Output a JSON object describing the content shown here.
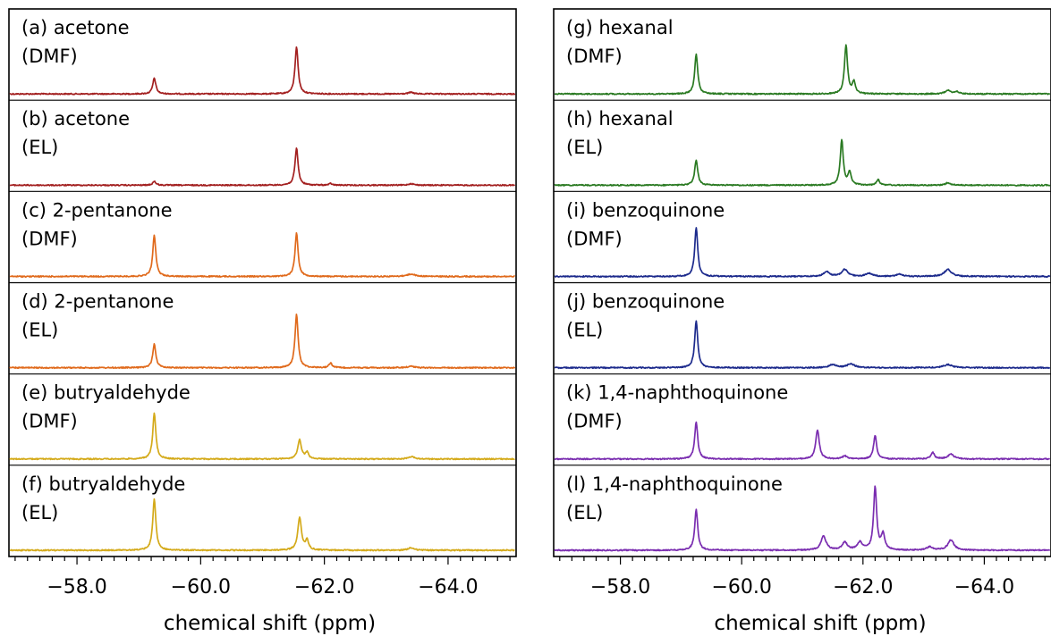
{
  "chart_data": [
    {
      "type": "line",
      "title": "",
      "xlabel": "chemical shift (ppm)",
      "ylabel": "",
      "xlim": [
        -56.9,
        -65.1
      ],
      "x_reversed": true,
      "xticks": [
        -58.0,
        -60.0,
        -62.0,
        -64.0
      ],
      "xtick_labels": [
        "−58.0",
        "−60.0",
        "−62.0",
        "−64.0"
      ],
      "grid": false,
      "series": [
        {
          "label_line1": "(a) acetone",
          "label_line2": "(DMF)",
          "color": "#a32020",
          "peaks": [
            {
              "x": -59.25,
              "height": 0.2,
              "width": 0.03
            },
            {
              "x": -61.55,
              "height": 0.6,
              "width": 0.03
            },
            {
              "x": -63.4,
              "height": 0.02,
              "width": 0.05
            }
          ]
        },
        {
          "label_line1": "(b) acetone",
          "label_line2": "(EL)",
          "color": "#a32020",
          "peaks": [
            {
              "x": -59.25,
              "height": 0.05,
              "width": 0.03
            },
            {
              "x": -61.55,
              "height": 0.47,
              "width": 0.03
            },
            {
              "x": -62.1,
              "height": 0.02,
              "width": 0.03
            },
            {
              "x": -63.4,
              "height": 0.02,
              "width": 0.05
            }
          ]
        },
        {
          "label_line1": "(c) 2-pentanone",
          "label_line2": "(DMF)",
          "color": "#e06a1c",
          "peaks": [
            {
              "x": -59.25,
              "height": 0.52,
              "width": 0.03
            },
            {
              "x": -61.55,
              "height": 0.55,
              "width": 0.03
            },
            {
              "x": -63.4,
              "height": 0.03,
              "width": 0.08
            }
          ]
        },
        {
          "label_line1": "(d) 2-pentanone",
          "label_line2": "(EL)",
          "color": "#e06a1c",
          "peaks": [
            {
              "x": -59.25,
              "height": 0.3,
              "width": 0.03
            },
            {
              "x": -61.55,
              "height": 0.68,
              "width": 0.03
            },
            {
              "x": -62.1,
              "height": 0.06,
              "width": 0.03
            },
            {
              "x": -63.4,
              "height": 0.02,
              "width": 0.06
            }
          ]
        },
        {
          "label_line1": "(e) butryaldehyde",
          "label_line2": "(DMF)",
          "color": "#d4aa1a",
          "peaks": [
            {
              "x": -59.25,
              "height": 0.58,
              "width": 0.03
            },
            {
              "x": -61.6,
              "height": 0.24,
              "width": 0.035
            },
            {
              "x": -61.72,
              "height": 0.08,
              "width": 0.03
            },
            {
              "x": -63.4,
              "height": 0.03,
              "width": 0.06
            }
          ]
        },
        {
          "label_line1": "(f) butryaldehyde",
          "label_line2": "(EL)",
          "color": "#d4aa1a",
          "peaks": [
            {
              "x": -59.25,
              "height": 0.65,
              "width": 0.03
            },
            {
              "x": -61.6,
              "height": 0.42,
              "width": 0.035
            },
            {
              "x": -61.72,
              "height": 0.12,
              "width": 0.03
            },
            {
              "x": -63.4,
              "height": 0.03,
              "width": 0.06
            }
          ]
        },
        {
          "label_line1": "(g) hexanal",
          "label_line2": "(DMF)",
          "color": "#2a7a22",
          "peaks": [
            {
              "x": -59.25,
              "height": 0.5,
              "width": 0.03
            },
            {
              "x": -61.72,
              "height": 0.62,
              "width": 0.03
            },
            {
              "x": -61.85,
              "height": 0.15,
              "width": 0.03
            },
            {
              "x": -63.4,
              "height": 0.05,
              "width": 0.05
            },
            {
              "x": -63.55,
              "height": 0.03,
              "width": 0.04
            }
          ]
        },
        {
          "label_line1": "(h) hexanal",
          "label_line2": "(EL)",
          "color": "#2a7a22",
          "peaks": [
            {
              "x": -59.25,
              "height": 0.32,
              "width": 0.03
            },
            {
              "x": -61.65,
              "height": 0.57,
              "width": 0.03
            },
            {
              "x": -61.78,
              "height": 0.16,
              "width": 0.03
            },
            {
              "x": -62.25,
              "height": 0.07,
              "width": 0.03
            },
            {
              "x": -63.4,
              "height": 0.03,
              "width": 0.05
            }
          ]
        },
        {
          "label_line1": "(i) benzoquinone",
          "label_line2": "(DMF)",
          "color": "#1c2a8c",
          "peaks": [
            {
              "x": -59.25,
              "height": 0.62,
              "width": 0.03
            },
            {
              "x": -61.4,
              "height": 0.06,
              "width": 0.06
            },
            {
              "x": -61.7,
              "height": 0.09,
              "width": 0.06
            },
            {
              "x": -62.1,
              "height": 0.04,
              "width": 0.06
            },
            {
              "x": -62.6,
              "height": 0.03,
              "width": 0.06
            },
            {
              "x": -63.4,
              "height": 0.09,
              "width": 0.07
            }
          ]
        },
        {
          "label_line1": "(j) benzoquinone",
          "label_line2": "(EL)",
          "color": "#1c2a8c",
          "peaks": [
            {
              "x": -59.25,
              "height": 0.6,
              "width": 0.03
            },
            {
              "x": -61.5,
              "height": 0.04,
              "width": 0.07
            },
            {
              "x": -61.8,
              "height": 0.05,
              "width": 0.07
            },
            {
              "x": -63.4,
              "height": 0.04,
              "width": 0.08
            }
          ]
        },
        {
          "label_line1": "(k) 1,4-naphthoquinone",
          "label_line2": "(DMF)",
          "color": "#7a2db0",
          "peaks": [
            {
              "x": -59.25,
              "height": 0.47,
              "width": 0.03
            },
            {
              "x": -61.25,
              "height": 0.37,
              "width": 0.035
            },
            {
              "x": -61.7,
              "height": 0.04,
              "width": 0.04
            },
            {
              "x": -62.2,
              "height": 0.3,
              "width": 0.03
            },
            {
              "x": -63.15,
              "height": 0.08,
              "width": 0.035
            },
            {
              "x": -63.45,
              "height": 0.06,
              "width": 0.06
            }
          ]
        },
        {
          "label_line1": "(l) 1,4-naphthoquinone",
          "label_line2": "(EL)",
          "color": "#7a2db0",
          "peaks": [
            {
              "x": -59.25,
              "height": 0.52,
              "width": 0.03
            },
            {
              "x": -61.35,
              "height": 0.18,
              "width": 0.05
            },
            {
              "x": -61.7,
              "height": 0.1,
              "width": 0.05
            },
            {
              "x": -61.95,
              "height": 0.1,
              "width": 0.05
            },
            {
              "x": -62.2,
              "height": 0.8,
              "width": 0.03
            },
            {
              "x": -62.33,
              "height": 0.2,
              "width": 0.035
            },
            {
              "x": -63.1,
              "height": 0.04,
              "width": 0.06
            },
            {
              "x": -63.45,
              "height": 0.13,
              "width": 0.06
            }
          ]
        }
      ]
    }
  ]
}
